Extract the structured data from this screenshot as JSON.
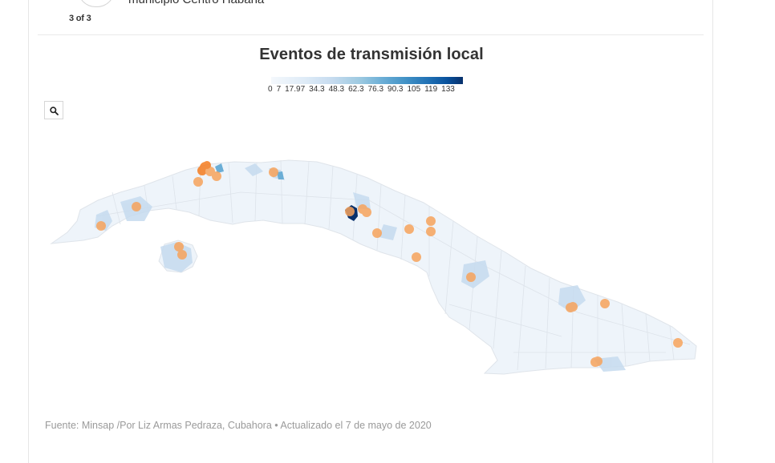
{
  "header": {
    "text": "municipio Centro Habana",
    "pager": "3 of 3"
  },
  "map": {
    "title": "Eventos de transmisión local",
    "legend": {
      "ticks": [
        "0",
        "7",
        "17.97",
        "34.3",
        "48.3",
        "62.3",
        "76.3",
        "90.3",
        "105",
        "119",
        "133"
      ],
      "color_low": "#f4f8fc",
      "color_high": "#08306b"
    },
    "marker_color": "#f7a35c",
    "base_color": "#eef4fa",
    "border_color": "#dfe4ea",
    "zoom_icon": "search-icon"
  },
  "footer": {
    "source": "Fuente: Minsap /Por Liz Armas Pedraza, Cubahora • Actualizado el 7 de mayo de 2020"
  }
}
